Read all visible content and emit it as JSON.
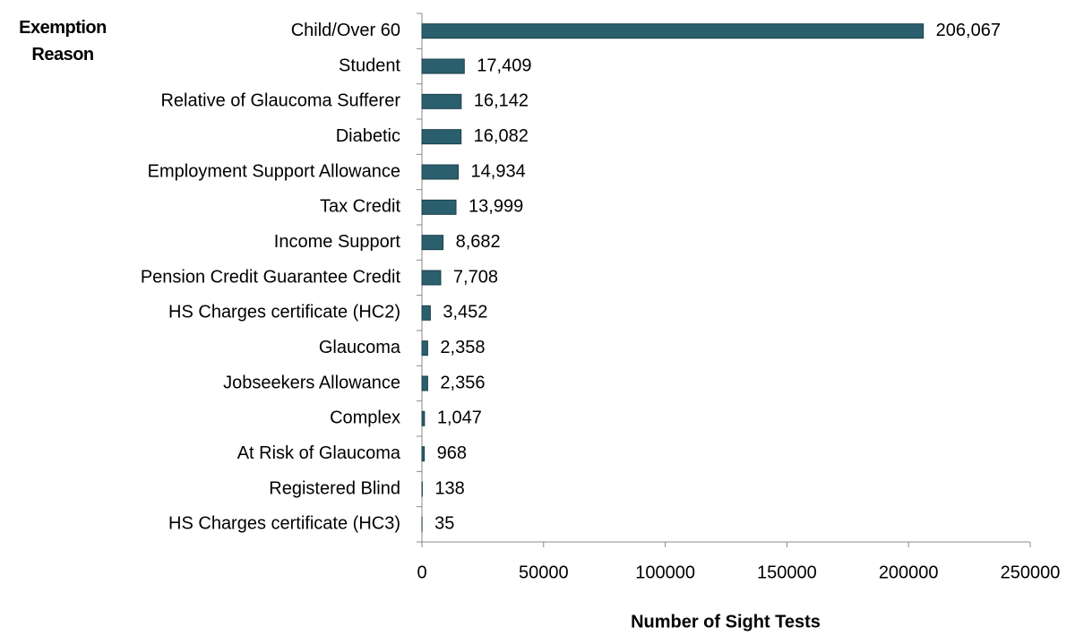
{
  "chart_data": {
    "type": "bar",
    "orientation": "horizontal",
    "ylabel": "Exemption Reason",
    "xlabel": "Number of Sight Tests",
    "categories": [
      "Child/Over 60",
      "Student",
      "Relative of Glaucoma Sufferer",
      "Diabetic",
      "Employment Support Allowance",
      "Tax Credit",
      "Income Support",
      "Pension Credit Guarantee Credit",
      "HS Charges certificate (HC2)",
      "Glaucoma",
      "Jobseekers Allowance",
      "Complex",
      "At Risk of Glaucoma",
      "Registered Blind",
      "HS Charges certificate (HC3)"
    ],
    "values": [
      206067,
      17409,
      16142,
      16082,
      14934,
      13999,
      8682,
      7708,
      3452,
      2358,
      2356,
      1047,
      968,
      138,
      35
    ],
    "value_labels": [
      "206,067",
      "17,409",
      "16,142",
      "16,082",
      "14,934",
      "13,999",
      "8,682",
      "7,708",
      "3,452",
      "2,358",
      "2,356",
      "1,047",
      "968",
      "138",
      "35"
    ],
    "color": "#2a5f6e",
    "xlim": [
      0,
      250000
    ],
    "xticks": [
      0,
      50000,
      100000,
      150000,
      200000,
      250000
    ],
    "grid": false
  }
}
